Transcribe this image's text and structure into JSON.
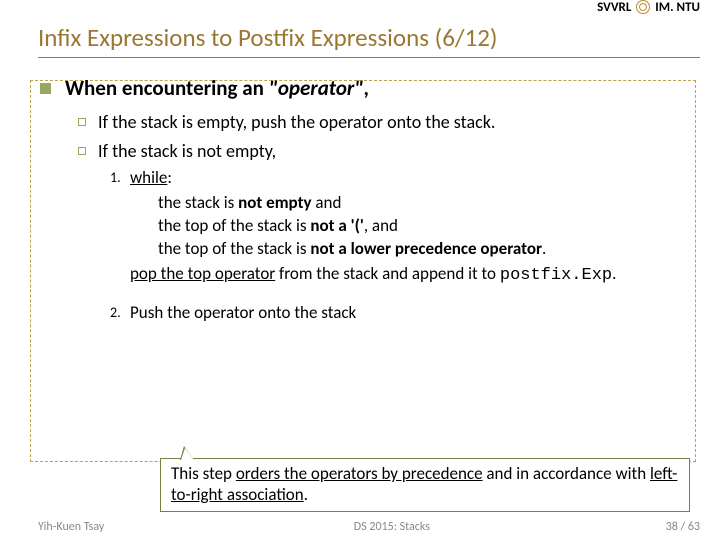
{
  "header": {
    "left": "SVVRL",
    "right": "IM. NTU"
  },
  "title": "Infix Expressions to Postfix Expressions (6/12)",
  "lvl1_html": "When encountering an <em>\"operator\"</em>,",
  "lvl2": {
    "a": "If the stack is empty, push the operator onto the stack.",
    "b": "If the stack is not empty,"
  },
  "step1": {
    "num": "1.",
    "while_word": "while",
    "colon": ":",
    "c1_html": "the stack is <b>not empty</b> and",
    "c2_html": "the top of the stack is <b>not a '('</b>, and",
    "c3_html": "the top of the stack is <b>not a lower precedence operator</b>.",
    "pop_html": "<u>pop the top operator</u> from the stack and append it to <span class=\"mono\">postfix.Exp</span>."
  },
  "step2": {
    "num": "2.",
    "text": "Push the operator onto the stack"
  },
  "callout_html": "This step <u>orders the operators by precedence</u> and in accordance with <u>left-to-right association</u>.",
  "footer": {
    "left": "Yih-Kuen Tsay",
    "center": "DS 2015: Stacks",
    "right": "38 / 63"
  }
}
